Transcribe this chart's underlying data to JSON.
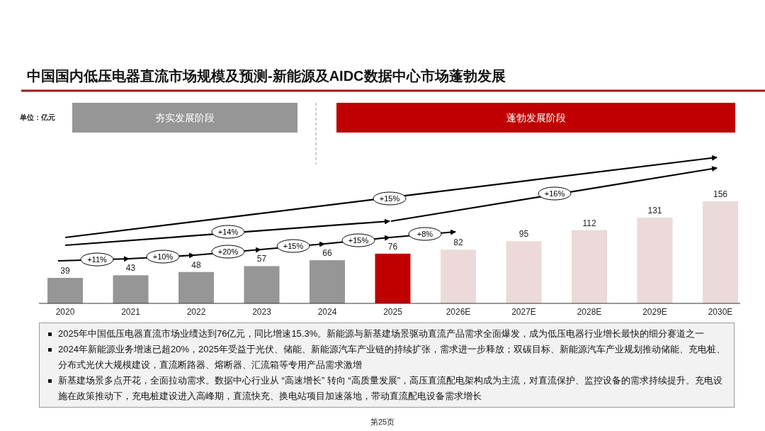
{
  "chart_data": {
    "type": "bar",
    "title": "中国国内低压电器直流市场规模及预测-新能源及AIDC数据中心市场蓬勃发展",
    "categories": [
      "2020",
      "2021",
      "2022",
      "2023",
      "2024",
      "2025",
      "2026E",
      "2027E",
      "2028E",
      "2029E",
      "2030E"
    ],
    "values": [
      39,
      43,
      48,
      57,
      66,
      76,
      82,
      95,
      112,
      131,
      156
    ],
    "colors": [
      "#969696",
      "#969696",
      "#969696",
      "#969696",
      "#969696",
      "#c00000",
      "#ecdada",
      "#ecdada",
      "#ecdada",
      "#ecdada",
      "#ecdada"
    ],
    "data_labels": true,
    "annotations": [
      "单位：亿元",
      "夯实发展阶段",
      "蓬勃发展阶段",
      "+11%",
      "+10%",
      "+20%",
      "+15%",
      "+15%",
      "+8%",
      "+14%",
      "+15%",
      "+16%",
      "2025年中国低压电器直流市场业绩达到76亿元，同比增速15.3%。新能源与新基建场景驱动直流产品需求全面爆发，成为低压电器行业增长最快的细分赛道之一",
      "2024年新能源业务增速已超20%，2025年受益于光伏、储能、新能源汽车产业链的持续扩张，需求进一步释放；双碳目标、新能源汽车产业规划推动储能、充电桩、分布式光伏大规模建设，直流断路器、熔断器、汇流箱等专用产品需求激增",
      "新基建场景多点开花，全面拉动需求。数据中心行业从 “高速增长” 转向 “高质量发展”，高压直流配电架构成为主流，对直流保护、监控设备的需求持续提升。充电设施在政策推动下，充电桩建设进入高峰期，直流快充、换电站项目加速落地，带动直流配电设备需求增长",
      "第25页"
    ]
  }
}
